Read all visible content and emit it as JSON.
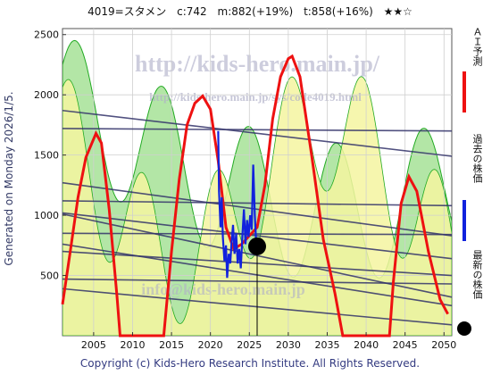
{
  "header": {
    "title": "4019=スタメン",
    "current": "c:742",
    "max": "m:882(+19%)",
    "target": "t:858(+16%)",
    "stars": "★★☆"
  },
  "side_label": "Generated on Monday 2026/1/5.",
  "watermark": {
    "line1": "http://kids-hero.main.jp/",
    "line2": "http://kids-hero.main.jp/sys/code4019.html",
    "line3": "info@kids-hero.main.jp"
  },
  "legend": {
    "ai_forecast": "ＡＩ予測",
    "past_price": "過去の株価",
    "latest_price": "最新の株価"
  },
  "colors": {
    "ai_forecast": "#ee1111",
    "past_price": "#1122dd",
    "latest_price": "#000000",
    "trend_lines": "#33336a",
    "band_green": "#99dd88",
    "band_yellow": "#f5f5a0",
    "band_border": "#22aa22"
  },
  "footer": "Copyright (c) Kids-Hero Research Institute. All Rights Reserved.",
  "chart_data": {
    "type": "line",
    "xlim": [
      2001,
      2051
    ],
    "ylim": [
      0,
      2550
    ],
    "xticks": [
      2005,
      2010,
      2015,
      2020,
      2025,
      2030,
      2035,
      2040,
      2045,
      2050
    ],
    "yticks": [
      500,
      1000,
      1500,
      2000,
      2500
    ],
    "grid": true,
    "latest": {
      "x": 2026.0,
      "y": 742
    },
    "ai_forecast": [
      [
        2001.0,
        260
      ],
      [
        2002.0,
        700
      ],
      [
        2003.0,
        1150
      ],
      [
        2004.0,
        1480
      ],
      [
        2005.3,
        1680
      ],
      [
        2006.0,
        1600
      ],
      [
        2007.0,
        1050
      ],
      [
        2008.0,
        330
      ],
      [
        2008.4,
        0
      ],
      [
        2014.0,
        0
      ],
      [
        2015.0,
        700
      ],
      [
        2016.0,
        1300
      ],
      [
        2017.0,
        1750
      ],
      [
        2018.0,
        1930
      ],
      [
        2019.0,
        1990
      ],
      [
        2020.0,
        1880
      ],
      [
        2021.0,
        1450
      ],
      [
        2022.0,
        900
      ],
      [
        2023.0,
        720
      ],
      [
        2024.0,
        760
      ],
      [
        2025.0,
        830
      ],
      [
        2026.0,
        900
      ],
      [
        2027.0,
        1250
      ],
      [
        2028.0,
        1800
      ],
      [
        2029.0,
        2150
      ],
      [
        2030.0,
        2300
      ],
      [
        2030.5,
        2320
      ],
      [
        2031.5,
        2150
      ],
      [
        2033.0,
        1500
      ],
      [
        2034.5,
        800
      ],
      [
        2036.0,
        350
      ],
      [
        2037.0,
        0
      ],
      [
        2043.0,
        0
      ],
      [
        2043.5,
        450
      ],
      [
        2044.5,
        1100
      ],
      [
        2045.5,
        1320
      ],
      [
        2046.5,
        1200
      ],
      [
        2048.0,
        700
      ],
      [
        2049.5,
        300
      ],
      [
        2050.5,
        180
      ]
    ],
    "past_price": [
      [
        2021.0,
        1700
      ],
      [
        2021.1,
        1200
      ],
      [
        2021.3,
        900
      ],
      [
        2021.45,
        1150
      ],
      [
        2021.6,
        820
      ],
      [
        2021.8,
        620
      ],
      [
        2022.0,
        750
      ],
      [
        2022.15,
        480
      ],
      [
        2022.35,
        680
      ],
      [
        2022.55,
        600
      ],
      [
        2022.7,
        760
      ],
      [
        2022.9,
        920
      ],
      [
        2023.1,
        680
      ],
      [
        2023.3,
        850
      ],
      [
        2023.5,
        600
      ],
      [
        2023.7,
        720
      ],
      [
        2023.9,
        560
      ],
      [
        2024.1,
        820
      ],
      [
        2024.3,
        1050
      ],
      [
        2024.5,
        760
      ],
      [
        2024.7,
        960
      ],
      [
        2024.9,
        820
      ],
      [
        2025.1,
        1000
      ],
      [
        2025.3,
        880
      ],
      [
        2025.5,
        1420
      ],
      [
        2025.7,
        1000
      ],
      [
        2025.9,
        742
      ]
    ],
    "trend_lines": [
      [
        [
          2001,
          1720
        ],
        [
          2051,
          1700
        ]
      ],
      [
        [
          2001,
          1870
        ],
        [
          2051,
          1490
        ]
      ],
      [
        [
          2001,
          1270
        ],
        [
          2051,
          830
        ]
      ],
      [
        [
          2001,
          1020
        ],
        [
          2051,
          640
        ]
      ],
      [
        [
          2001,
          1010
        ],
        [
          2051,
          320
        ]
      ],
      [
        [
          2001,
          1120
        ],
        [
          2051,
          1080
        ]
      ],
      [
        [
          2001,
          850
        ],
        [
          2051,
          840
        ]
      ],
      [
        [
          2001,
          700
        ],
        [
          2051,
          500
        ]
      ],
      [
        [
          2001,
          760
        ],
        [
          2051,
          250
        ]
      ],
      [
        [
          2001,
          470
        ],
        [
          2051,
          430
        ]
      ],
      [
        [
          2001,
          390
        ],
        [
          2051,
          90
        ]
      ]
    ]
  }
}
